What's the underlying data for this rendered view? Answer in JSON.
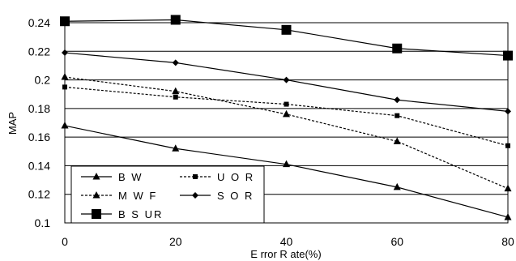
{
  "chart_data": {
    "type": "line",
    "title": "",
    "xlabel": "E rror R ate(%)",
    "ylabel": "MAP",
    "x": [
      0,
      20,
      40,
      60,
      80
    ],
    "xlim": [
      0,
      80
    ],
    "ylim": [
      0.1,
      0.24
    ],
    "x_ticks": [
      "0",
      "20",
      "40",
      "60",
      "80"
    ],
    "y_ticks": [
      "0.1",
      "0.12",
      "0.14",
      "0.16",
      "0.18",
      "0.2",
      "0.22",
      "0.24"
    ],
    "grid": "horizontal",
    "legend_position": "bottom-left",
    "series": [
      {
        "name": "BW",
        "label": "B W",
        "marker": "triangle",
        "dash": "solid",
        "values": [
          0.168,
          0.152,
          0.141,
          0.125,
          0.104
        ]
      },
      {
        "name": "UOR",
        "label": "U O R",
        "marker": "square-small",
        "dash": "dotted",
        "values": [
          0.195,
          0.188,
          0.183,
          0.175,
          0.154
        ]
      },
      {
        "name": "MWF",
        "label": "M W F",
        "marker": "triangle",
        "dash": "dotted",
        "values": [
          0.202,
          0.192,
          0.176,
          0.157,
          0.124
        ]
      },
      {
        "name": "SOR",
        "label": "S O R",
        "marker": "diamond",
        "dash": "solid",
        "values": [
          0.219,
          0.212,
          0.2,
          0.186,
          0.178
        ]
      },
      {
        "name": "BSUR",
        "label": "B S UR",
        "marker": "square-large",
        "dash": "solid",
        "values": [
          0.241,
          0.242,
          0.235,
          0.222,
          0.217
        ]
      }
    ]
  }
}
